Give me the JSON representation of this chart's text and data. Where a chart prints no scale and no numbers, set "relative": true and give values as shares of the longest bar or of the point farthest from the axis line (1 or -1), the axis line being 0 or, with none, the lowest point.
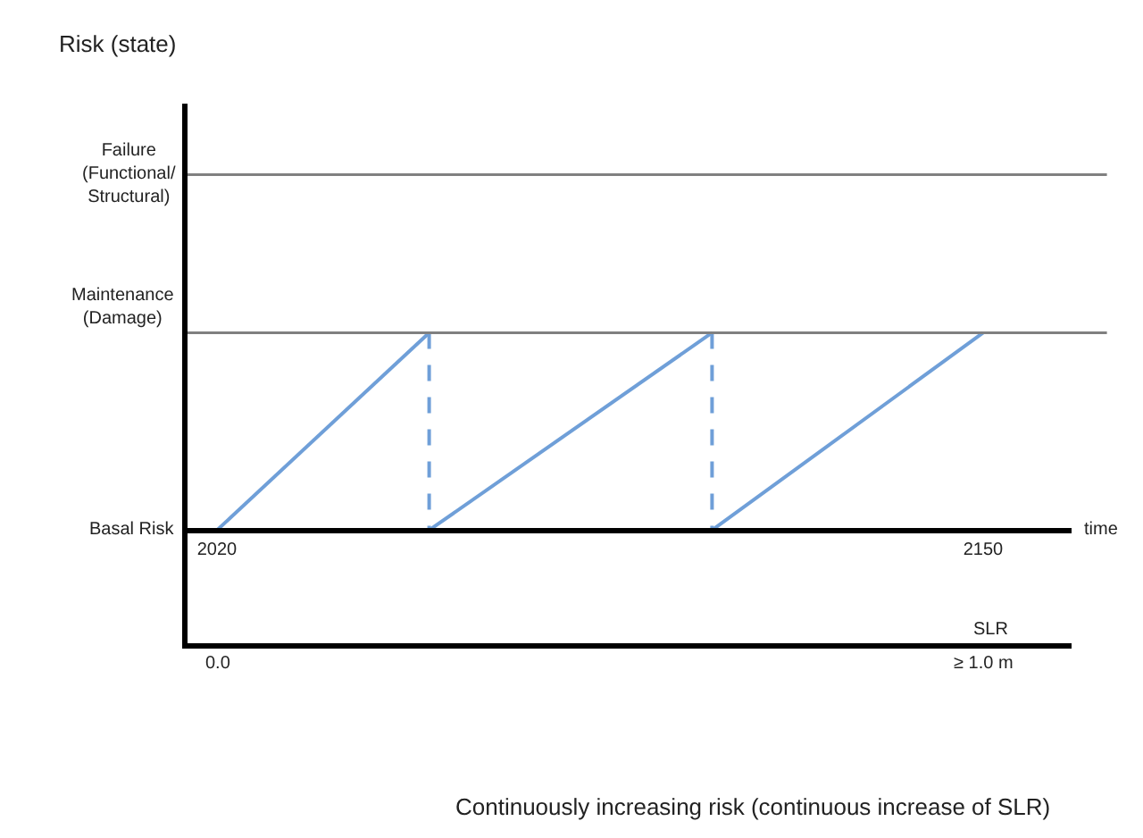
{
  "chart_data": {
    "type": "line",
    "relative": true,
    "xlabel": "time",
    "x2label": "SLR",
    "xlim": [
      2015,
      2165
    ],
    "xticks": [
      2020,
      2150
    ],
    "ref_lines": [
      {
        "axis": "y",
        "value": 1,
        "label": "Maintenance\n(Damage)",
        "color": "#808080"
      },
      {
        "axis": "y",
        "value": 1.8,
        "label": "Failure\n(Functional/\nStructural)",
        "color": "#808080"
      }
    ],
    "series": [
      {
        "color": "#6f9fd8",
        "line_style": "solid",
        "x": [
          2020,
          2056
        ],
        "values": [
          0,
          1
        ]
      },
      {
        "color": "#6f9fd8",
        "line_style": "solid",
        "x": [
          2056,
          2104
        ],
        "values": [
          0,
          1
        ]
      },
      {
        "color": "#6f9fd8",
        "line_style": "solid",
        "x": [
          2104,
          2150
        ],
        "values": [
          0,
          1
        ]
      },
      {
        "color": "#6f9fd8",
        "line_style": "dashed",
        "x": [
          2056,
          2056
        ],
        "values": [
          1,
          0
        ]
      },
      {
        "color": "#6f9fd8",
        "line_style": "dashed",
        "x": [
          2104,
          2104
        ],
        "values": [
          1,
          0
        ]
      }
    ],
    "annotations": [
      "Risk (state)",
      "Basal Risk",
      "0.0",
      "≥ 1.0 m",
      "Continuously increasing risk (continuous increase of SLR)"
    ],
    "marker": "none",
    "legend": false
  }
}
